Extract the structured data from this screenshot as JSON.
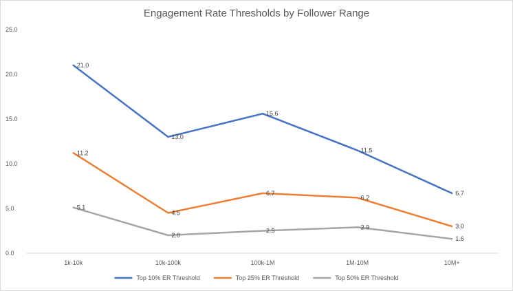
{
  "chart_data": {
    "type": "line",
    "title": "Engagement Rate Thresholds by Follower Range",
    "xlabel": "",
    "ylabel": "",
    "categories": [
      "1k-10k",
      "10k-100k",
      "100k-1M",
      "1M-10M",
      "10M+"
    ],
    "ylim": [
      0,
      25
    ],
    "yticks": [
      "0.0",
      "5.0",
      "10.0",
      "15.0",
      "20.0",
      "25.0"
    ],
    "grid": false,
    "legend_position": "bottom",
    "series": [
      {
        "name": "Top 10% ER Threshold",
        "color": "#4472C4",
        "values": [
          21.0,
          13.0,
          15.6,
          11.5,
          6.7
        ]
      },
      {
        "name": "Top 25% ER Threshold",
        "color": "#ED7D31",
        "values": [
          11.2,
          4.5,
          6.7,
          6.2,
          3.0
        ]
      },
      {
        "name": "Top 50% ER Threshold",
        "color": "#A5A5A5",
        "values": [
          5.1,
          2.0,
          2.5,
          2.9,
          1.6
        ]
      }
    ]
  }
}
